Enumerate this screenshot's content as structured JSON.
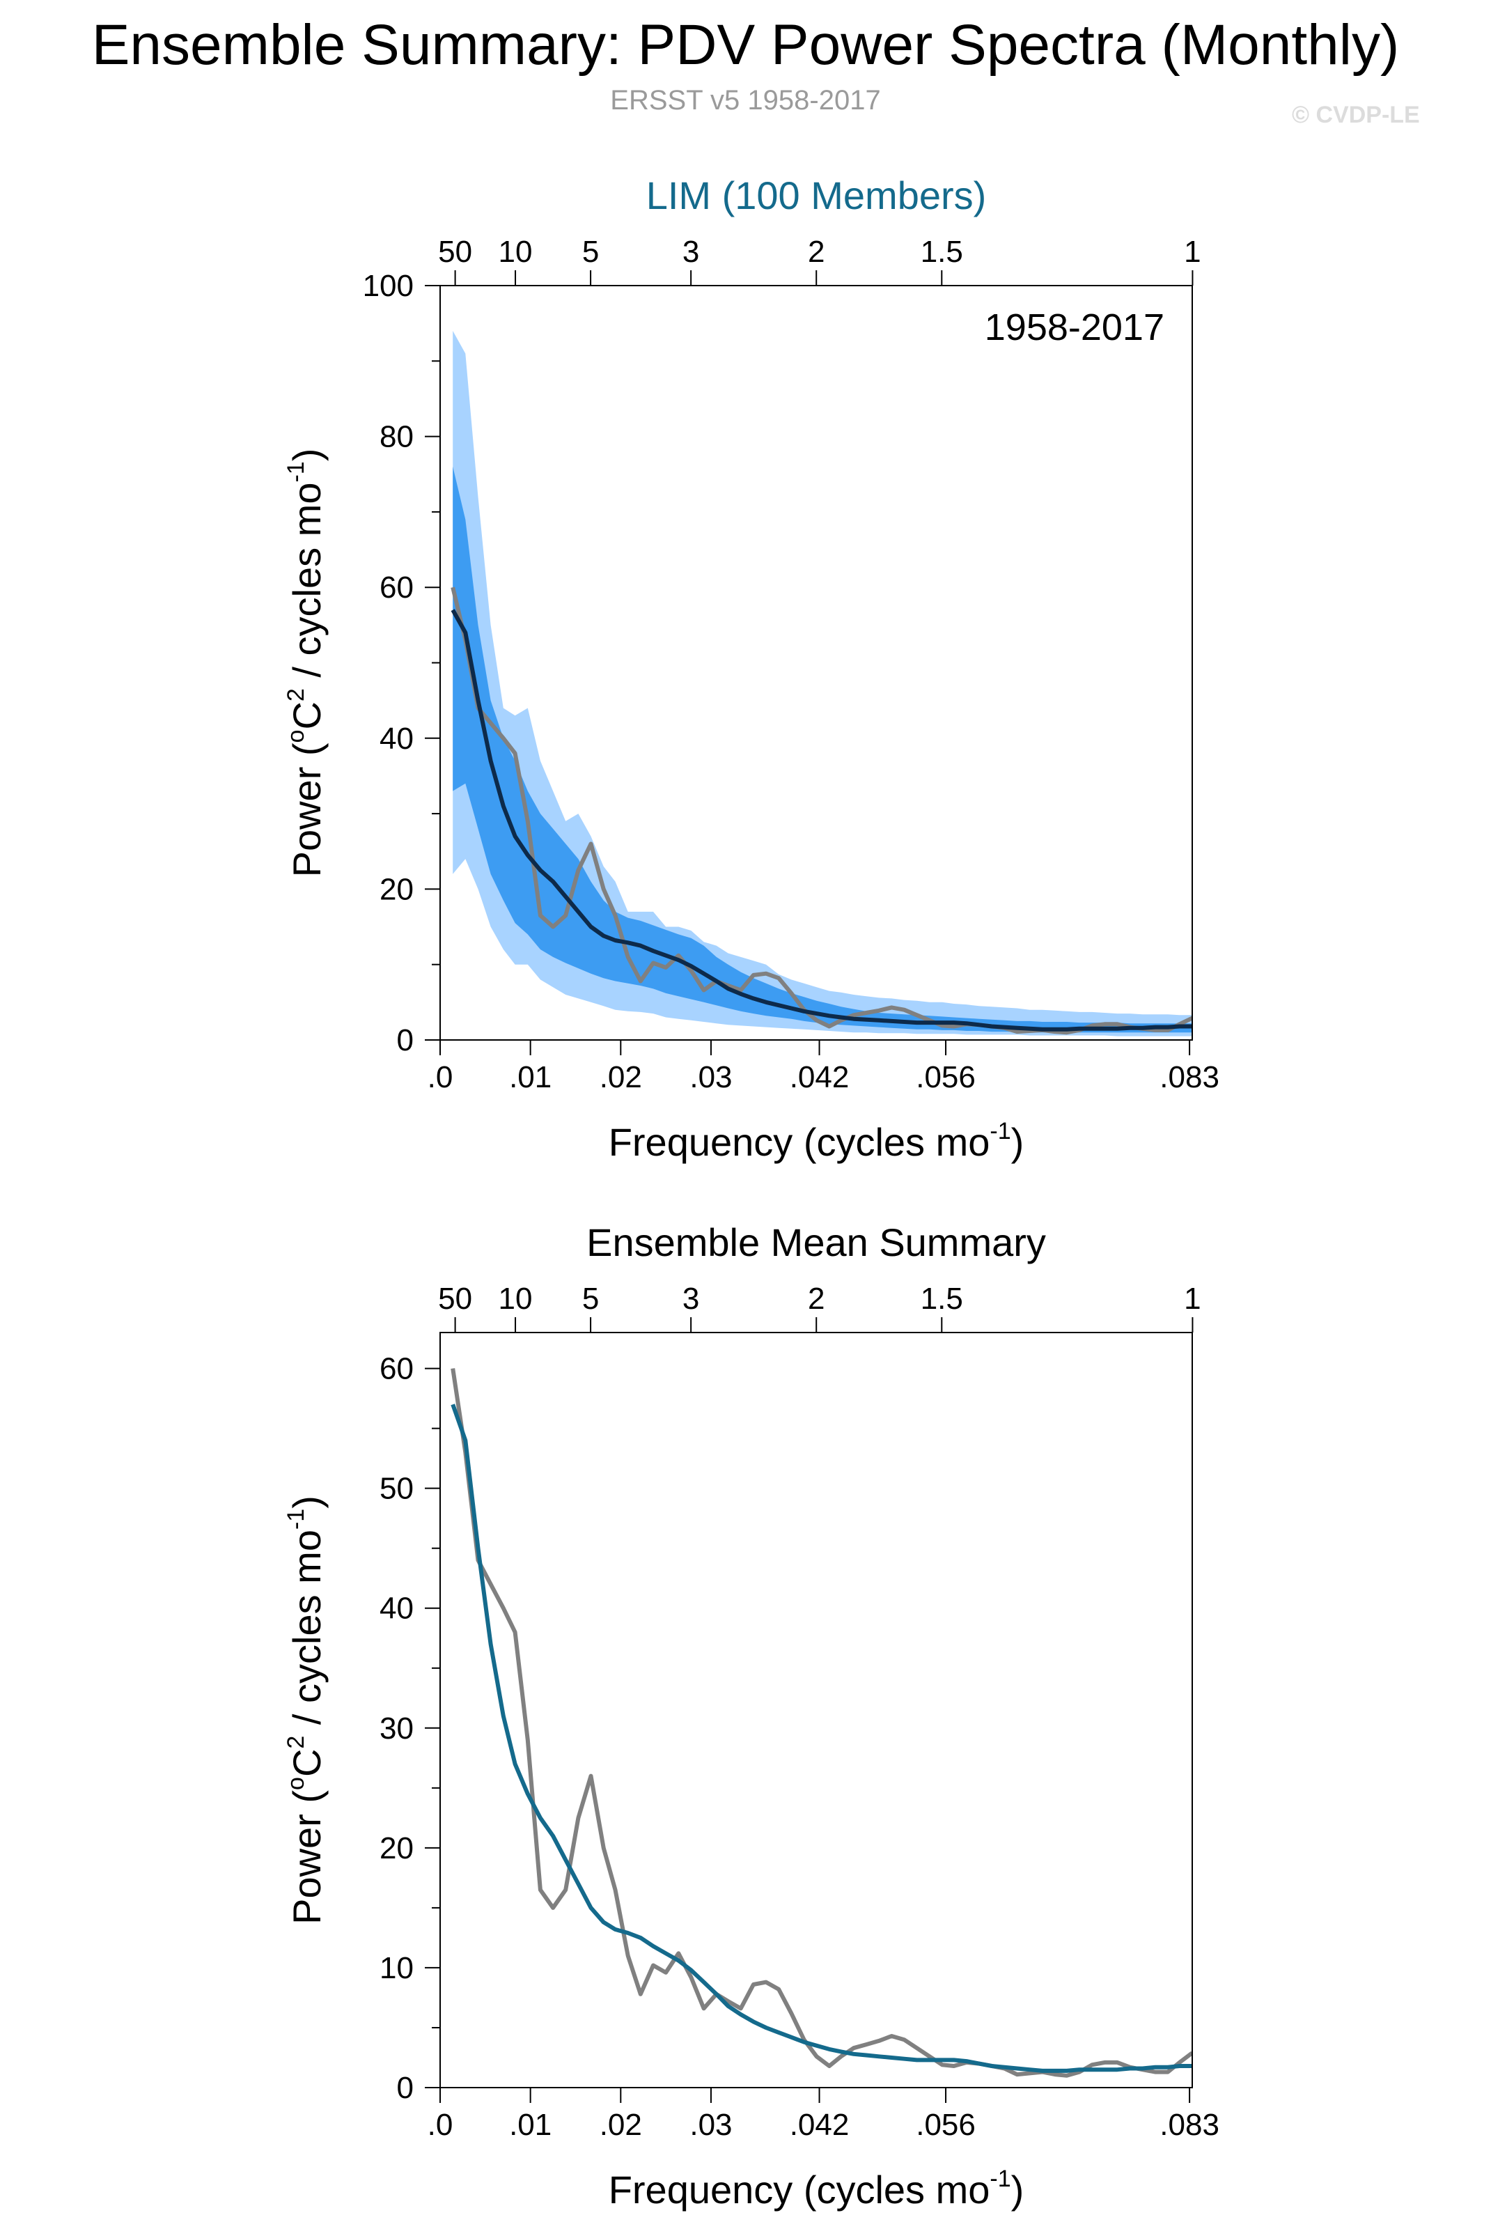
{
  "title": "Ensemble Summary: PDV Power Spectra (Monthly)",
  "subtitle": "ERSST v5 1958-2017",
  "credit": "© CVDP-LE",
  "colors": {
    "outer_band": "#a8d3ff",
    "inner_band": "#3d9cf2",
    "ensemble_mean_top": "#0d2a4a",
    "ensemble_mean_bottom": "#146a8c",
    "observations": "#808080",
    "top_title": "#146a8c"
  },
  "chart_data": [
    {
      "type": "area",
      "title": "LIM (100 Members)",
      "annotation": "1958-2017",
      "xlabel": "Frequency (cycles mo",
      "xlabel_sup": "-1",
      "xlabel_end": ")",
      "ylabel": "Power (",
      "ylabel_sup1": "o",
      "ylabel_mid": "C",
      "ylabel_sup2": "2",
      "ylabel_mid2": " / cycles mo",
      "ylabel_sup3": "-1",
      "ylabel_end": ")",
      "xlim": [
        0.0,
        0.0833
      ],
      "ylim": [
        0,
        100
      ],
      "yticks": [
        0,
        20,
        40,
        60,
        80,
        100
      ],
      "xticks": [
        {
          "v": 0.0,
          "l": ".0"
        },
        {
          "v": 0.01,
          "l": ".01"
        },
        {
          "v": 0.02,
          "l": ".02"
        },
        {
          "v": 0.03,
          "l": ".03"
        },
        {
          "v": 0.042,
          "l": ".042"
        },
        {
          "v": 0.056,
          "l": ".056"
        },
        {
          "v": 0.083,
          "l": ".083"
        }
      ],
      "period_ticks": [
        {
          "v": 0.001667,
          "l": "50"
        },
        {
          "v": 0.008333,
          "l": "10"
        },
        {
          "v": 0.016667,
          "l": "5"
        },
        {
          "v": 0.027778,
          "l": "3"
        },
        {
          "v": 0.041667,
          "l": "2"
        },
        {
          "v": 0.055556,
          "l": "1.5"
        },
        {
          "v": 0.083333,
          "l": "1"
        }
      ],
      "x": [
        0.0014,
        0.0028,
        0.0042,
        0.0056,
        0.007,
        0.0083,
        0.0097,
        0.0111,
        0.0125,
        0.0139,
        0.0153,
        0.0167,
        0.0181,
        0.0194,
        0.0208,
        0.0222,
        0.0236,
        0.025,
        0.0264,
        0.0278,
        0.0292,
        0.0306,
        0.0319,
        0.0333,
        0.0347,
        0.0361,
        0.0375,
        0.0389,
        0.0403,
        0.0417,
        0.0431,
        0.0444,
        0.0458,
        0.0472,
        0.0486,
        0.05,
        0.0514,
        0.0528,
        0.0542,
        0.0556,
        0.0569,
        0.0583,
        0.0597,
        0.0611,
        0.0625,
        0.0639,
        0.0653,
        0.0667,
        0.0681,
        0.0694,
        0.0708,
        0.0722,
        0.0736,
        0.075,
        0.0764,
        0.0778,
        0.0792,
        0.0806,
        0.0819,
        0.0833
      ],
      "series": [
        {
          "name": "",
          "role": "outer_band",
          "upper": [
            94,
            91,
            72,
            55,
            44,
            43,
            44,
            37,
            33,
            29,
            30,
            27,
            23,
            21,
            17,
            17,
            17,
            15,
            15,
            14.5,
            13,
            12.5,
            11.5,
            11,
            10.5,
            10,
            8.7,
            8,
            7.5,
            7,
            6.5,
            6.3,
            6,
            5.8,
            5.6,
            5.5,
            5.3,
            5.2,
            5,
            5,
            4.8,
            4.7,
            4.5,
            4.4,
            4.3,
            4.2,
            4,
            4,
            3.9,
            3.8,
            3.7,
            3.7,
            3.6,
            3.5,
            3.5,
            3.4,
            3.4,
            3.4,
            3.3,
            3.3
          ],
          "lower": [
            22,
            24,
            20,
            15,
            12,
            10,
            10,
            8,
            7,
            6,
            5.5,
            5,
            4.5,
            4,
            3.8,
            3.7,
            3.5,
            3,
            2.8,
            2.6,
            2.4,
            2.2,
            2,
            1.9,
            1.8,
            1.7,
            1.6,
            1.5,
            1.4,
            1.3,
            1.2,
            1.1,
            1,
            1,
            0.9,
            0.9,
            0.9,
            0.8,
            0.8,
            0.8,
            0.8,
            0.7,
            0.7,
            0.7,
            0.7,
            0.7,
            0.6,
            0.6,
            0.6,
            0.6,
            0.6,
            0.6,
            0.6,
            0.5,
            0.5,
            0.5,
            0.5,
            0.5,
            0.5,
            0.5
          ]
        },
        {
          "name": "",
          "role": "inner_band",
          "upper": [
            76,
            69,
            55,
            45,
            40,
            37,
            33,
            30,
            28,
            26,
            24,
            21,
            18.5,
            17,
            16.2,
            15.8,
            15.2,
            14.6,
            14,
            13.5,
            12.5,
            11,
            10,
            9,
            8.2,
            7.5,
            6.8,
            6.2,
            5.7,
            5.2,
            4.8,
            4.4,
            4.1,
            3.8,
            3.6,
            3.5,
            3.4,
            3.3,
            3.2,
            3.1,
            3,
            2.9,
            2.8,
            2.7,
            2.6,
            2.5,
            2.5,
            2.4,
            2.4,
            2.4,
            2.3,
            2.3,
            2.3,
            2.3,
            2.2,
            2.2,
            2.2,
            2.2,
            2.2,
            2.2
          ],
          "lower": [
            33,
            34,
            28,
            22,
            18.5,
            15.5,
            14,
            12,
            11,
            10.2,
            9.5,
            8.8,
            8.2,
            7.8,
            7.5,
            7.2,
            6.8,
            6.2,
            5.8,
            5.4,
            5,
            4.6,
            4.2,
            3.8,
            3.5,
            3.2,
            3,
            2.8,
            2.5,
            2.3,
            2.1,
            2,
            1.9,
            1.8,
            1.7,
            1.6,
            1.5,
            1.4,
            1.4,
            1.3,
            1.3,
            1.2,
            1.2,
            1.1,
            1.1,
            1.1,
            1,
            1,
            1,
            1,
            1,
            1,
            1,
            1,
            1,
            1,
            1,
            1,
            1,
            1
          ]
        },
        {
          "name": "",
          "role": "ensemble_mean",
          "values": [
            57,
            54,
            45,
            37,
            31,
            27,
            24.5,
            22.5,
            21,
            19,
            17,
            15,
            13.8,
            13.2,
            12.9,
            12.5,
            11.8,
            11.2,
            10.6,
            9.8,
            8.8,
            7.8,
            6.8,
            6.1,
            5.5,
            5,
            4.6,
            4.2,
            3.8,
            3.5,
            3.2,
            3,
            2.8,
            2.7,
            2.6,
            2.5,
            2.4,
            2.3,
            2.3,
            2.3,
            2.3,
            2.2,
            2,
            1.8,
            1.7,
            1.6,
            1.5,
            1.4,
            1.4,
            1.4,
            1.5,
            1.5,
            1.5,
            1.5,
            1.6,
            1.6,
            1.7,
            1.7,
            1.8,
            1.8
          ]
        },
        {
          "name": "",
          "role": "observations",
          "values": [
            60,
            53,
            44,
            42,
            40,
            38,
            29,
            16.5,
            15,
            16.5,
            22.5,
            26,
            20,
            16.5,
            11,
            7.8,
            10.2,
            9.6,
            11.2,
            9.2,
            6.6,
            7.8,
            7.2,
            6.6,
            8.6,
            8.8,
            8.2,
            6.2,
            4,
            2.6,
            1.8,
            2.6,
            3.3,
            3.6,
            3.9,
            4.3,
            4,
            3.3,
            2.6,
            1.9,
            1.8,
            2.1,
            2,
            1.8,
            1.6,
            1.1,
            1.2,
            1.3,
            1.1,
            1,
            1.3,
            1.9,
            2.1,
            2.1,
            1.7,
            1.5,
            1.3,
            1.3,
            2.1,
            2.9
          ]
        }
      ]
    },
    {
      "type": "line",
      "title": "Ensemble Mean Summary",
      "xlabel": "Frequency (cycles mo",
      "xlabel_sup": "-1",
      "xlabel_end": ")",
      "ylabel": "Power (",
      "ylabel_sup1": "o",
      "ylabel_mid": "C",
      "ylabel_sup2": "2",
      "ylabel_mid2": " / cycles mo",
      "ylabel_sup3": "-1",
      "ylabel_end": ")",
      "xlim": [
        0.0,
        0.0833
      ],
      "ylim": [
        0,
        63
      ],
      "yticks": [
        0,
        10,
        20,
        30,
        40,
        50,
        60
      ],
      "xticks": [
        {
          "v": 0.0,
          "l": ".0"
        },
        {
          "v": 0.01,
          "l": ".01"
        },
        {
          "v": 0.02,
          "l": ".02"
        },
        {
          "v": 0.03,
          "l": ".03"
        },
        {
          "v": 0.042,
          "l": ".042"
        },
        {
          "v": 0.056,
          "l": ".056"
        },
        {
          "v": 0.083,
          "l": ".083"
        }
      ],
      "period_ticks": [
        {
          "v": 0.001667,
          "l": "50"
        },
        {
          "v": 0.008333,
          "l": "10"
        },
        {
          "v": 0.016667,
          "l": "5"
        },
        {
          "v": 0.027778,
          "l": "3"
        },
        {
          "v": 0.041667,
          "l": "2"
        },
        {
          "v": 0.055556,
          "l": "1.5"
        },
        {
          "v": 0.083333,
          "l": "1"
        }
      ],
      "x": [
        0.0014,
        0.0028,
        0.0042,
        0.0056,
        0.007,
        0.0083,
        0.0097,
        0.0111,
        0.0125,
        0.0139,
        0.0153,
        0.0167,
        0.0181,
        0.0194,
        0.0208,
        0.0222,
        0.0236,
        0.025,
        0.0264,
        0.0278,
        0.0292,
        0.0306,
        0.0319,
        0.0333,
        0.0347,
        0.0361,
        0.0375,
        0.0389,
        0.0403,
        0.0417,
        0.0431,
        0.0444,
        0.0458,
        0.0472,
        0.0486,
        0.05,
        0.0514,
        0.0528,
        0.0542,
        0.0556,
        0.0569,
        0.0583,
        0.0597,
        0.0611,
        0.0625,
        0.0639,
        0.0653,
        0.0667,
        0.0681,
        0.0694,
        0.0708,
        0.0722,
        0.0736,
        0.075,
        0.0764,
        0.0778,
        0.0792,
        0.0806,
        0.0819,
        0.0833
      ],
      "series": [
        {
          "name": "",
          "role": "ensemble_mean",
          "values": [
            57,
            54,
            45,
            37,
            31,
            27,
            24.5,
            22.5,
            21,
            19,
            17,
            15,
            13.8,
            13.2,
            12.9,
            12.5,
            11.8,
            11.2,
            10.6,
            9.8,
            8.8,
            7.8,
            6.8,
            6.1,
            5.5,
            5,
            4.6,
            4.2,
            3.8,
            3.5,
            3.2,
            3,
            2.8,
            2.7,
            2.6,
            2.5,
            2.4,
            2.3,
            2.3,
            2.3,
            2.3,
            2.2,
            2,
            1.8,
            1.7,
            1.6,
            1.5,
            1.4,
            1.4,
            1.4,
            1.5,
            1.5,
            1.5,
            1.5,
            1.6,
            1.6,
            1.7,
            1.7,
            1.8,
            1.8
          ]
        },
        {
          "name": "",
          "role": "observations",
          "values": [
            60,
            53,
            44,
            42,
            40,
            38,
            29,
            16.5,
            15,
            16.5,
            22.5,
            26,
            20,
            16.5,
            11,
            7.8,
            10.2,
            9.6,
            11.2,
            9.2,
            6.6,
            7.8,
            7.2,
            6.6,
            8.6,
            8.8,
            8.2,
            6.2,
            4,
            2.6,
            1.8,
            2.6,
            3.3,
            3.6,
            3.9,
            4.3,
            4,
            3.3,
            2.6,
            1.9,
            1.8,
            2.1,
            2,
            1.8,
            1.6,
            1.1,
            1.2,
            1.3,
            1.1,
            1,
            1.3,
            1.9,
            2.1,
            2.1,
            1.7,
            1.5,
            1.3,
            1.3,
            2.1,
            2.9
          ]
        }
      ]
    }
  ]
}
